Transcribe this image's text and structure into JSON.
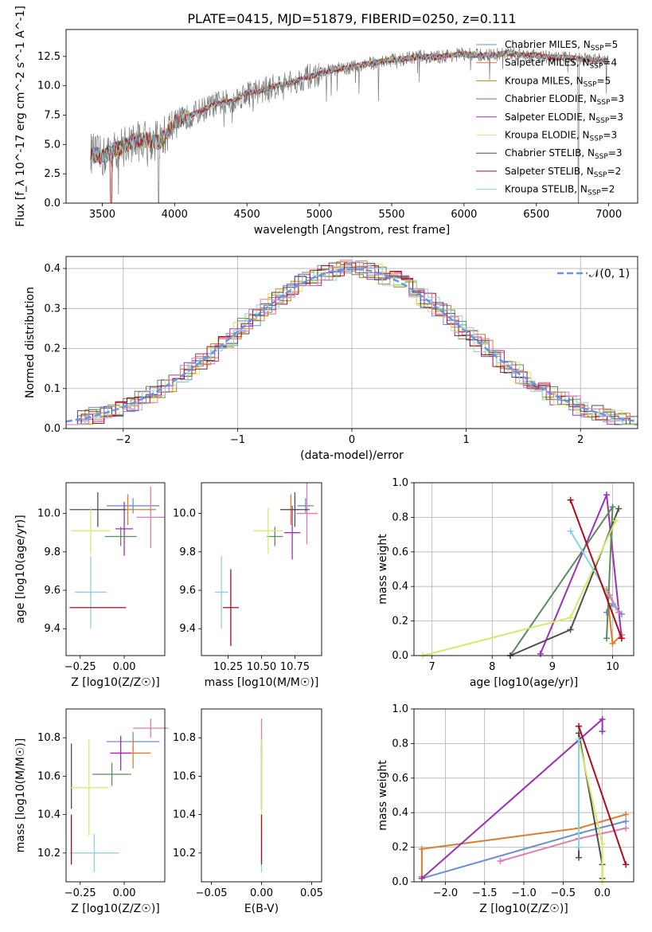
{
  "colors": {
    "chabrier_miles": "#6a8fd6",
    "salpeter_miles": "#e07b2d",
    "kroupa_miles": "#b8860b",
    "chabrier_elodie": "#5c8a5c",
    "salpeter_elodie": "#9b30b8",
    "kroupa_elodie": "#e8e88a",
    "chabrier_stelib": "#4d4d4d",
    "salpeter_stelib": "#b00a1a",
    "kroupa_stelib": "#87d4e0",
    "pink": "#e07bb0",
    "green_yellow": "#d4ea6a",
    "normal_curve": "#6495ed"
  },
  "chart_data": [
    {
      "type": "line",
      "title": "PLATE=0415, MJD=51879, FIBERID=0250, z=0.111",
      "xlabel": "wavelength [Angstrom, rest frame]",
      "ylabel": "Flux [f_λ 10^-17 erg cm^-2 s^-1 A^-1]",
      "xlim": [
        3250,
        7200
      ],
      "ylim": [
        0,
        14.8
      ],
      "xticks": [
        "3500",
        "4000",
        "4500",
        "5000",
        "5500",
        "6000",
        "6500",
        "7000"
      ],
      "yticks": [
        "0.0",
        "2.5",
        "5.0",
        "7.5",
        "10.0",
        "12.5"
      ],
      "legend_position": "upper-right",
      "series": [
        {
          "name": "Chabrier MILES, N_SSP=5"
        },
        {
          "name": "Salpeter MILES, N_SSP=4"
        },
        {
          "name": "Kroupa MILES, N_SSP=5"
        },
        {
          "name": "Chabrier ELODIE, N_SSP=3"
        },
        {
          "name": "Salpeter ELODIE, N_SSP=3"
        },
        {
          "name": "Kroupa ELODIE, N_SSP=3"
        },
        {
          "name": "Chabrier STELIB, N_SSP=3"
        },
        {
          "name": "Salpeter STELIB, N_SSP=2"
        },
        {
          "name": "Kroupa STELIB, N_SSP=2"
        }
      ],
      "continuum_points": [
        [
          3420,
          4.3
        ],
        [
          3500,
          3.9
        ],
        [
          3600,
          4.6
        ],
        [
          3700,
          5.2
        ],
        [
          3800,
          5.4
        ],
        [
          3900,
          5.2
        ],
        [
          4000,
          6.9
        ],
        [
          4100,
          7.4
        ],
        [
          4200,
          8.0
        ],
        [
          4300,
          8.5
        ],
        [
          4400,
          8.7
        ],
        [
          4500,
          9.4
        ],
        [
          4600,
          9.6
        ],
        [
          4700,
          10.0
        ],
        [
          4800,
          10.2
        ],
        [
          4900,
          10.7
        ],
        [
          5000,
          11.0
        ],
        [
          5100,
          11.4
        ],
        [
          5200,
          11.5
        ],
        [
          5300,
          11.8
        ],
        [
          5400,
          12.0
        ],
        [
          5500,
          12.2
        ],
        [
          5600,
          12.3
        ],
        [
          5700,
          12.5
        ],
        [
          5800,
          12.4
        ],
        [
          5900,
          12.6
        ],
        [
          6000,
          12.7
        ],
        [
          6100,
          12.6
        ],
        [
          6200,
          12.6
        ],
        [
          6300,
          12.8
        ],
        [
          6400,
          12.6
        ],
        [
          6500,
          12.6
        ],
        [
          6600,
          12.4
        ],
        [
          6700,
          12.4
        ],
        [
          6800,
          12.3
        ],
        [
          6900,
          12.2
        ],
        [
          7000,
          12.1
        ]
      ]
    },
    {
      "type": "step",
      "xlabel": "(data-model)/error",
      "ylabel": "Normed distribution",
      "xlim": [
        -2.5,
        2.5
      ],
      "ylim": [
        0,
        0.43
      ],
      "xticks": [
        "−2",
        "−1",
        "0",
        "1",
        "2"
      ],
      "yticks": [
        "0.0",
        "0.1",
        "0.2",
        "0.3",
        "0.4"
      ],
      "grid": true,
      "legend": "𝒩(0, 1)",
      "legend_position": "upper-right",
      "normal": {
        "mean": 0,
        "sigma": 1
      }
    },
    {
      "type": "errorbar",
      "xlabel": "Z [log10(Z/Z☉)]",
      "ylabel": "age  [log10(age/yr)]",
      "xlim": [
        -0.33,
        0.23
      ],
      "ylim": [
        9.26,
        10.16
      ],
      "xticks": [
        "−0.25",
        "0.00"
      ],
      "yticks": [
        "9.4",
        "9.6",
        "9.8",
        "10.0"
      ],
      "points": [
        {
          "c": "chabrier_miles",
          "x": 0.05,
          "xe": 0.15,
          "y": 10.04,
          "ye": 0.04
        },
        {
          "c": "salpeter_miles",
          "x": 0.02,
          "xe": 0.16,
          "y": 10.02,
          "ye": 0.08
        },
        {
          "c": "pink",
          "x": 0.15,
          "xe": 0.08,
          "y": 9.98,
          "ye": 0.16
        },
        {
          "c": "salpeter_elodie",
          "x": 0.0,
          "xe": 0.05,
          "y": 9.92,
          "ye": 0.14
        },
        {
          "c": "chabrier_elodie",
          "x": -0.02,
          "xe": 0.09,
          "y": 9.88,
          "ye": 0.05
        },
        {
          "c": "chabrier_stelib",
          "x": -0.15,
          "xe": 0.16,
          "y": 10.02,
          "ye": 0.09
        },
        {
          "c": "green_yellow",
          "x": -0.19,
          "xe": 0.11,
          "y": 9.91,
          "ye": 0.12
        },
        {
          "c": "kroupa_stelib",
          "x": -0.19,
          "xe": 0.09,
          "y": 9.59,
          "ye": 0.19
        },
        {
          "c": "salpeter_stelib",
          "x": -0.15,
          "xe": 0.16,
          "y": 9.51,
          "ye": 0.0
        }
      ]
    },
    {
      "type": "errorbar",
      "xlabel": "mass [log10(M/M☉)]",
      "ylabel": "",
      "xlim": [
        10.05,
        10.95
      ],
      "ylim": [
        9.26,
        10.16
      ],
      "xticks": [
        "10.25",
        "10.50",
        "10.75"
      ],
      "yticks": [
        "9.4",
        "9.6",
        "9.8",
        "10.0"
      ],
      "points": [
        {
          "c": "chabrier_miles",
          "x": 10.83,
          "xe": 0.06,
          "y": 10.04,
          "ye": 0.04
        },
        {
          "c": "salpeter_miles",
          "x": 10.72,
          "xe": 0.06,
          "y": 10.02,
          "ye": 0.08
        },
        {
          "c": "pink",
          "x": 10.84,
          "xe": 0.08,
          "y": 10.0,
          "ye": 0.16
        },
        {
          "c": "salpeter_elodie",
          "x": 10.73,
          "xe": 0.06,
          "y": 9.9,
          "ye": 0.14
        },
        {
          "c": "chabrier_elodie",
          "x": 10.6,
          "xe": 0.06,
          "y": 9.88,
          "ye": 0.05
        },
        {
          "c": "chabrier_stelib",
          "x": 10.75,
          "xe": 0.11,
          "y": 10.02,
          "ye": 0.09
        },
        {
          "c": "green_yellow",
          "x": 10.55,
          "xe": 0.11,
          "y": 9.91,
          "ye": 0.12
        },
        {
          "c": "kroupa_stelib",
          "x": 10.2,
          "xe": 0.05,
          "y": 9.59,
          "ye": 0.19
        },
        {
          "c": "salpeter_stelib",
          "x": 10.27,
          "xe": 0.06,
          "y": 9.51,
          "ye": 0.2
        }
      ]
    },
    {
      "type": "line",
      "xlabel": "age  [log10(age/yr)]",
      "ylabel": "mass weight",
      "xlim": [
        6.7,
        10.35
      ],
      "ylim": [
        0,
        1.0
      ],
      "xticks": [
        "7",
        "8",
        "9",
        "10"
      ],
      "yticks": [
        "0.0",
        "0.2",
        "0.4",
        "0.6",
        "0.8",
        "1.0"
      ],
      "grid": true,
      "series": [
        {
          "c": "chabrier_miles",
          "x": [
            9.9,
            10.0,
            10.15
          ],
          "y": [
            0.25,
            0.3,
            0.24
          ]
        },
        {
          "c": "salpeter_miles",
          "x": [
            9.9,
            10.0,
            10.15
          ],
          "y": [
            0.38,
            0.07,
            0.12
          ]
        },
        {
          "c": "salpeter_elodie",
          "x": [
            8.8,
            9.9,
            10.15
          ],
          "y": [
            0.01,
            0.93,
            0.1
          ]
        },
        {
          "c": "chabrier_elodie",
          "x": [
            9.9,
            10.0,
            8.3
          ],
          "y": [
            0.1,
            0.86,
            0.0
          ]
        },
        {
          "c": "chabrier_stelib",
          "x": [
            8.3,
            9.3,
            10.1
          ],
          "y": [
            0.0,
            0.15,
            0.85
          ]
        },
        {
          "c": "green_yellow",
          "x": [
            6.85,
            9.3,
            10.05
          ],
          "y": [
            0.0,
            0.22,
            0.78
          ]
        },
        {
          "c": "kroupa_stelib",
          "x": [
            9.3,
            10.05
          ],
          "y": [
            0.72,
            0.28
          ]
        },
        {
          "c": "salpeter_stelib",
          "x": [
            9.3,
            10.15
          ],
          "y": [
            0.9,
            0.1
          ]
        },
        {
          "c": "pink",
          "x": [
            9.95,
            10.1
          ],
          "y": [
            0.35,
            0.25
          ]
        }
      ]
    },
    {
      "type": "errorbar",
      "xlabel": "Z [log10(Z/Z☉)]",
      "ylabel": "mass [log10(M/M☉)]",
      "xlim": [
        -0.33,
        0.23
      ],
      "ylim": [
        10.05,
        10.95
      ],
      "xticks": [
        "−0.25",
        "0.00"
      ],
      "yticks": [
        "10.2",
        "10.4",
        "10.6",
        "10.8"
      ],
      "points": [
        {
          "c": "chabrier_miles",
          "x": 0.05,
          "xe": 0.15,
          "y": 10.78,
          "ye": 0.05
        },
        {
          "c": "salpeter_miles",
          "x": 0.05,
          "xe": 0.1,
          "y": 10.72,
          "ye": 0.08
        },
        {
          "c": "pink",
          "x": 0.15,
          "xe": 0.1,
          "y": 10.85,
          "ye": 0.05
        },
        {
          "c": "salpeter_elodie",
          "x": -0.02,
          "xe": 0.06,
          "y": 10.72,
          "ye": 0.09
        },
        {
          "c": "chabrier_elodie",
          "x": -0.07,
          "xe": 0.11,
          "y": 10.61,
          "ye": 0.06
        },
        {
          "c": "chabrier_stelib",
          "x": -0.3,
          "xe": 0.0,
          "y": 10.6,
          "ye": 0.17
        },
        {
          "c": "green_yellow",
          "x": -0.2,
          "xe": 0.11,
          "y": 10.54,
          "ye": 0.25
        },
        {
          "c": "kroupa_stelib",
          "x": -0.17,
          "xe": 0.14,
          "y": 10.2,
          "ye": 0.1
        },
        {
          "c": "salpeter_stelib",
          "x": -0.3,
          "xe": 0.0,
          "y": 10.27,
          "ye": 0.13
        }
      ]
    },
    {
      "type": "errorbar",
      "xlabel": "E(B-V)",
      "ylabel": "",
      "xlim": [
        -0.06,
        0.06
      ],
      "ylim": [
        10.05,
        10.95
      ],
      "xticks": [
        "−0.05",
        "0.00",
        "0.05"
      ],
      "yticks": [
        "10.2",
        "10.4",
        "10.6",
        "10.8"
      ],
      "points": [
        {
          "c": "pink",
          "x": 0,
          "xe": 0,
          "y": 10.8,
          "ye": 0.1
        },
        {
          "c": "chabrier_stelib",
          "x": 0,
          "xe": 0,
          "y": 10.6,
          "ye": 0.17
        },
        {
          "c": "green_yellow",
          "x": 0,
          "xe": 0,
          "y": 10.54,
          "ye": 0.25
        },
        {
          "c": "kroupa_stelib",
          "x": 0,
          "xe": 0,
          "y": 10.2,
          "ye": 0.1
        },
        {
          "c": "salpeter_stelib",
          "x": 0,
          "xe": 0,
          "y": 10.27,
          "ye": 0.13
        }
      ]
    },
    {
      "type": "line",
      "xlabel": "Z [log10(Z/Z☉)]",
      "ylabel": "mass weight",
      "xlim": [
        -2.4,
        0.4
      ],
      "ylim": [
        0,
        1.0
      ],
      "xticks": [
        "−2.0",
        "−1.5",
        "−1.0",
        "−0.5",
        "0.0"
      ],
      "yticks": [
        "0.0",
        "0.2",
        "0.4",
        "0.6",
        "0.8",
        "1.0"
      ],
      "grid": true,
      "series": [
        {
          "c": "chabrier_miles",
          "x": [
            -2.3,
            -0.3,
            0.3
          ],
          "y": [
            0.02,
            0.28,
            0.35
          ]
        },
        {
          "c": "salpeter_miles",
          "x": [
            -2.3,
            -2.3,
            -0.3,
            0.3
          ],
          "y": [
            0.03,
            0.19,
            0.31,
            0.39
          ]
        },
        {
          "c": "pink",
          "x": [
            -1.3,
            -0.3,
            0.3
          ],
          "y": [
            0.12,
            0.25,
            0.31
          ]
        },
        {
          "c": "salpeter_elodie",
          "x": [
            -2.3,
            0.0,
            0.0
          ],
          "y": [
            0.02,
            0.94,
            0.87
          ]
        },
        {
          "c": "chabrier_stelib",
          "x": [
            -0.3,
            -0.3,
            0.0,
            0.0
          ],
          "y": [
            0.14,
            0.86,
            0.1,
            0.02
          ]
        },
        {
          "c": "green_yellow",
          "x": [
            -0.3,
            0.0,
            0.0
          ],
          "y": [
            0.82,
            0.22,
            0.0
          ]
        },
        {
          "c": "kroupa_stelib",
          "x": [
            -0.3,
            -0.3
          ],
          "y": [
            0.82,
            0.2
          ]
        },
        {
          "c": "salpeter_stelib",
          "x": [
            -0.3,
            0.3
          ],
          "y": [
            0.9,
            0.1
          ]
        }
      ]
    }
  ]
}
